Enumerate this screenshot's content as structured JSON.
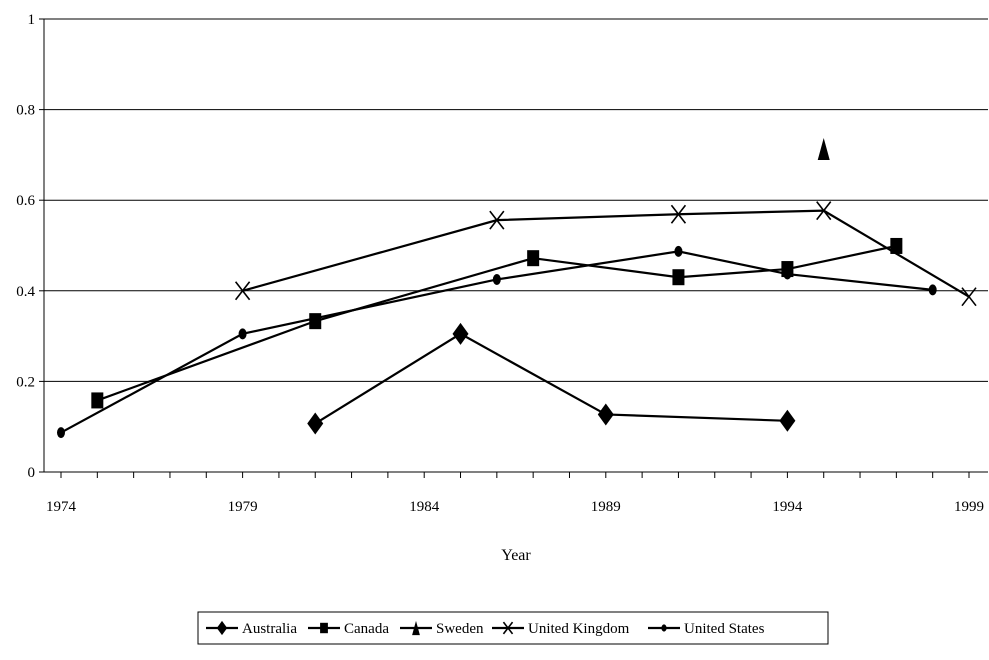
{
  "chart_data": {
    "type": "line",
    "title": "",
    "xlabel": "Year",
    "ylabel": "",
    "xlim": [
      1974,
      1999
    ],
    "ylim": [
      0,
      1
    ],
    "x_ticks": [
      "1974",
      "1979",
      "1984",
      "1989",
      "1994",
      "1999"
    ],
    "y_ticks": [
      "0",
      "0.2",
      "0.4",
      "0.6",
      "0.8",
      "1"
    ],
    "grid": "horizontal",
    "legend_position": "bottom",
    "series": [
      {
        "name": "Australia",
        "marker": "diamond",
        "color": "#000000",
        "points": [
          [
            1981,
            0.107
          ],
          [
            1985,
            0.305
          ],
          [
            1989,
            0.127
          ],
          [
            1994,
            0.113
          ]
        ]
      },
      {
        "name": "Canada",
        "marker": "square",
        "color": "#000000",
        "points": [
          [
            1975,
            0.158
          ],
          [
            1981,
            0.333
          ],
          [
            1987,
            0.472
          ],
          [
            1991,
            0.43
          ],
          [
            1994,
            0.448
          ],
          [
            1997,
            0.499
          ]
        ]
      },
      {
        "name": "Sweden",
        "marker": "triangle",
        "color": "#000000",
        "points": [
          [
            1995,
            0.713
          ]
        ]
      },
      {
        "name": "United Kingdom",
        "marker": "x",
        "color": "#000000",
        "points": [
          [
            1979,
            0.4
          ],
          [
            1986,
            0.556
          ],
          [
            1991,
            0.569
          ],
          [
            1995,
            0.577
          ],
          [
            1999,
            0.387
          ]
        ]
      },
      {
        "name": "United States",
        "marker": "dot",
        "color": "#000000",
        "points": [
          [
            1974,
            0.087
          ],
          [
            1979,
            0.305
          ],
          [
            1986,
            0.425
          ],
          [
            1991,
            0.487
          ],
          [
            1994,
            0.437
          ],
          [
            1998,
            0.402
          ]
        ]
      }
    ]
  }
}
